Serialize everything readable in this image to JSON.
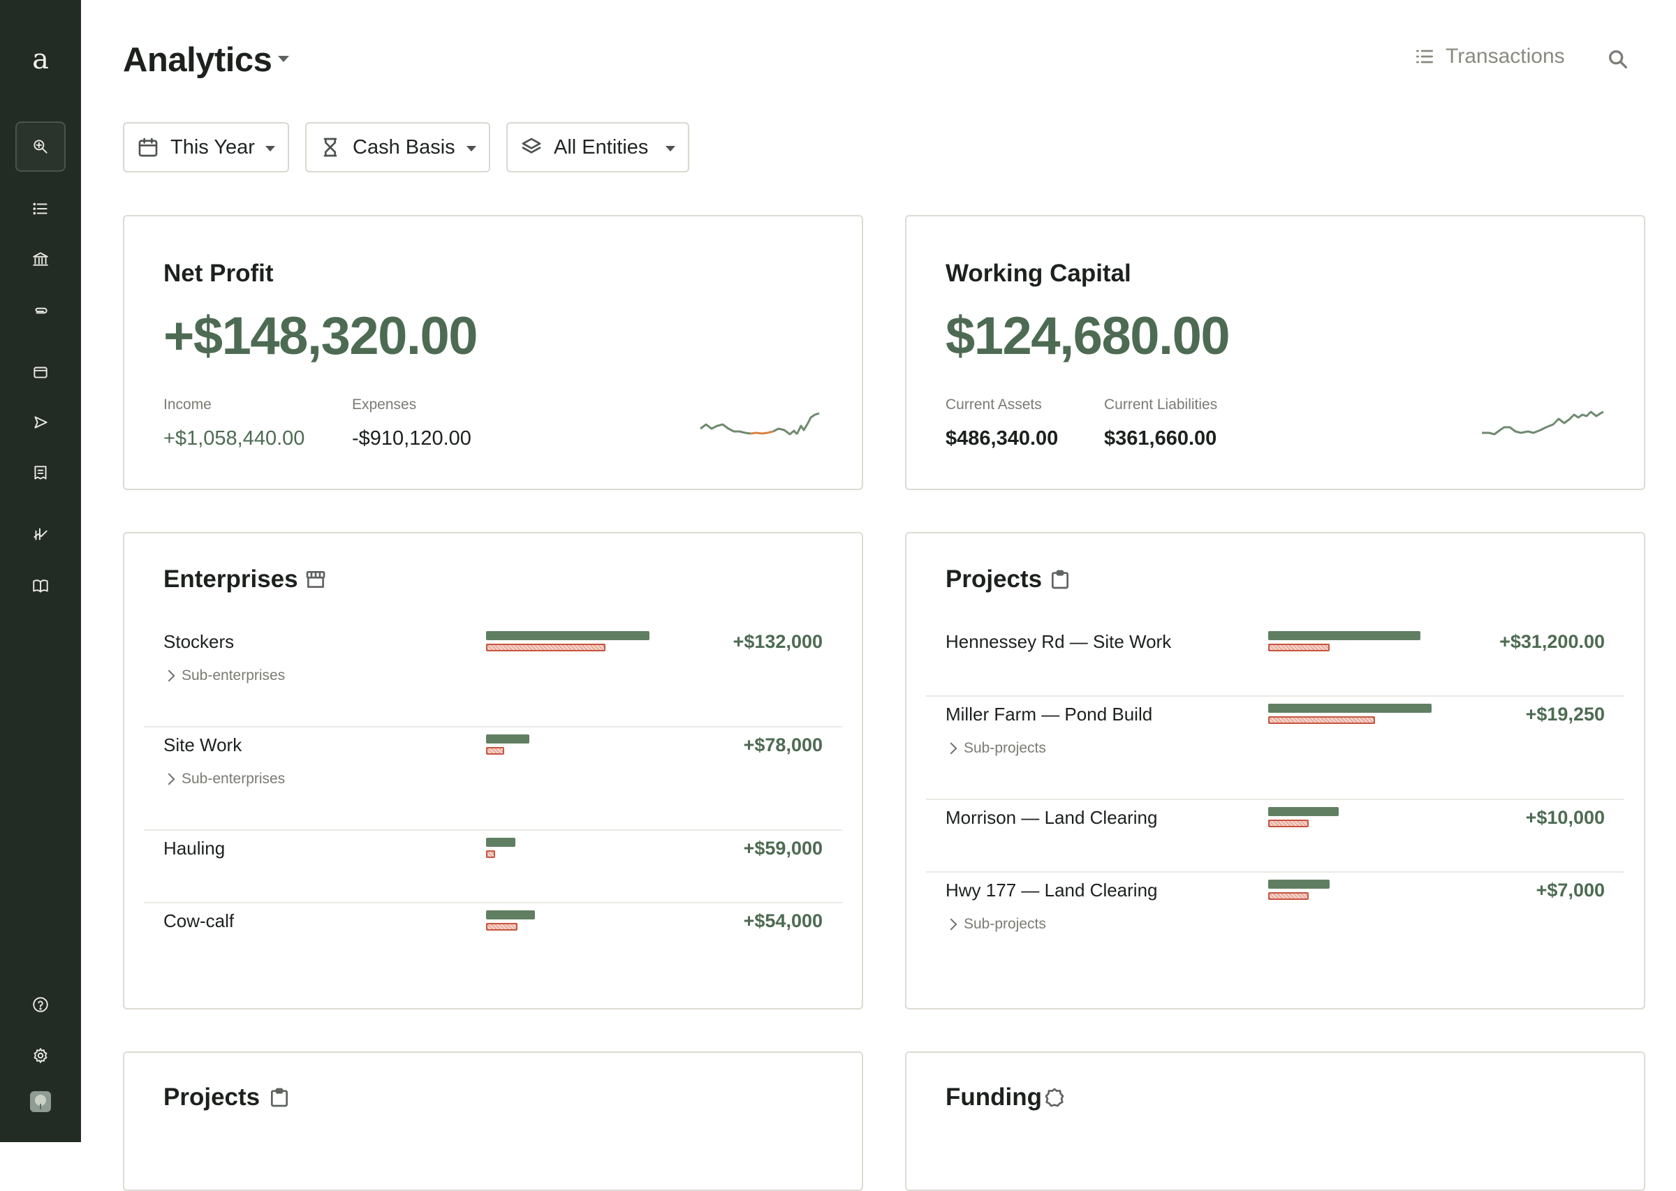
{
  "app": {
    "logo_letter": "a"
  },
  "sidebar": {
    "items": [
      {
        "icon": "search-icon",
        "active": true
      },
      {
        "icon": "list-icon"
      },
      {
        "icon": "bank-icon"
      },
      {
        "icon": "paperclip-icon"
      },
      {
        "icon": "wallet-icon"
      },
      {
        "icon": "send-icon"
      },
      {
        "icon": "receipt-icon"
      },
      {
        "icon": "chart-icon"
      },
      {
        "icon": "book-icon"
      },
      {
        "icon": "help-icon"
      },
      {
        "icon": "gear-icon"
      },
      {
        "icon": "avatar"
      }
    ]
  },
  "header": {
    "title": "Analytics",
    "transactions_label": "Transactions"
  },
  "filters": {
    "period": "This Year",
    "basis": "Cash Basis",
    "entities": "All Entities"
  },
  "net_profit": {
    "title": "Net Profit",
    "value": "+$148,320.00",
    "income_label": "Income",
    "income_value": "+$1,058,440.00",
    "expenses_label": "Expenses",
    "expenses_value": "-$910,120.00"
  },
  "working_capital": {
    "title": "Working Capital",
    "value": "$124,680.00",
    "assets_label": "Current Assets",
    "assets_value": "$486,340.00",
    "liabilities_label": "Current Liabilities",
    "liabilities_value": "$361,660.00"
  },
  "enterprises": {
    "title": "Enterprises",
    "rows": [
      {
        "name": "Stockers",
        "value": "+$132,000",
        "sub": "Sub-enterprises",
        "income": 132000,
        "expense": 0.73
      },
      {
        "name": "Site Work",
        "value": "+$78,000",
        "sub": "Sub-enterprises"
      },
      {
        "name": "Hauling",
        "value": "+$59,000"
      },
      {
        "name": "Cow-calf",
        "value": "+$54,000"
      }
    ]
  },
  "projects": {
    "title": "Projects",
    "rows": [
      {
        "name": "Hennessey Rd — Site Work",
        "value": "+$31,200.00"
      },
      {
        "name": "Miller Farm — Pond Build",
        "value": "+$19,250",
        "sub": "Sub-projects"
      },
      {
        "name": "Morrison — Land Clearing",
        "value": "+$10,000"
      },
      {
        "name": "Hwy 177 — Land Clearing",
        "value": "+$7,000",
        "sub": "Sub-projects"
      }
    ]
  },
  "projects_2": {
    "title": "Projects"
  },
  "funding": {
    "title": "Funding"
  },
  "colors": {
    "sidebar_bg": "#222b24",
    "accent_green": "#4d6b52",
    "bar_income": "#607f62",
    "bar_expense": "#c7543e"
  }
}
